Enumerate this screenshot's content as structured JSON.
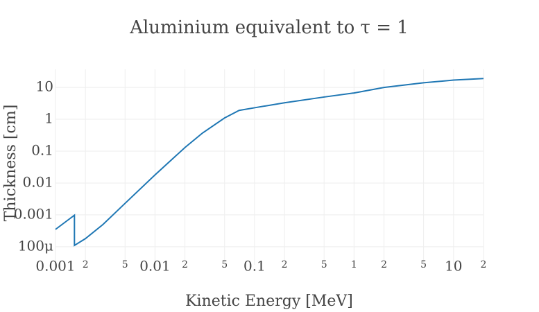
{
  "chart_data": {
    "type": "line",
    "title": "Aluminium equivalent to τ = 1",
    "x_label": "Kinetic Energy [MeV]",
    "y_label": "Thickness [cm]",
    "x_scale": "log",
    "y_scale": "log",
    "grid": true,
    "series": [
      {
        "color": "#1f77b4",
        "x": [
          0.001,
          0.00155,
          0.00155,
          0.002,
          0.003,
          0.005,
          0.01,
          0.02,
          0.03,
          0.05,
          0.07,
          0.1,
          0.2,
          0.5,
          1,
          2,
          5,
          10,
          20
        ],
        "values": [
          0.00035,
          0.00098,
          0.00011,
          0.00018,
          0.0005,
          0.0023,
          0.018,
          0.13,
          0.37,
          1.1,
          1.9,
          2.3,
          3.3,
          5,
          6.7,
          10,
          14,
          17,
          19
        ]
      }
    ],
    "xlim": [
      0.001,
      20
    ],
    "ylim": [
      2.7e-05,
      37
    ],
    "xticks": [
      0.001,
      {
        "value": 0.002,
        "label": "2"
      },
      {
        "value": 0.005,
        "label": "5"
      },
      0.01,
      {
        "value": 0.02,
        "label": "2"
      },
      {
        "value": 0.05,
        "label": "5"
      },
      0.1,
      {
        "value": 0.2,
        "label": "2"
      },
      {
        "value": 0.5,
        "label": "5"
      },
      1,
      {
        "value": 2,
        "label": "2"
      },
      {
        "value": 5,
        "label": "5"
      },
      10,
      {
        "value": 20,
        "label": "2"
      }
    ],
    "yticks": [
      {
        "value": 0.0001,
        "label": "100μ"
      },
      0.001,
      0.01,
      0.1,
      1,
      10
    ]
  }
}
